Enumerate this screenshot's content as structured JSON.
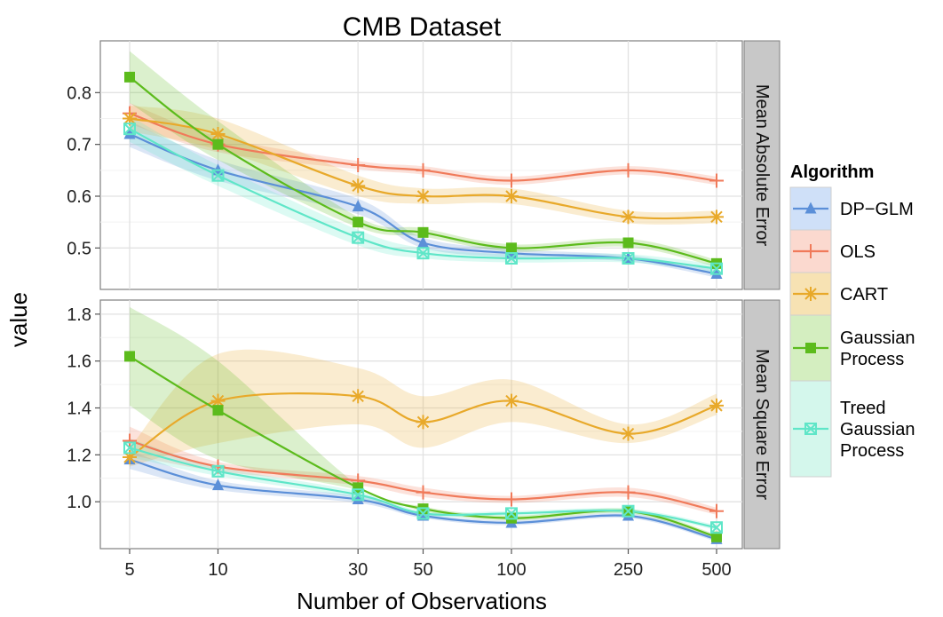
{
  "chart_data": {
    "type": "line",
    "title": "CMB Dataset",
    "xlabel": "Number of Observations",
    "ylabel": "value",
    "x_scale": "log",
    "x": [
      5,
      10,
      30,
      50,
      100,
      250,
      500
    ],
    "x_tick_labels": [
      "5",
      "10",
      "30",
      "50",
      "100",
      "250",
      "500"
    ],
    "grid": true,
    "legend": {
      "title": "Algorithm",
      "placement": "right",
      "entries": [
        {
          "label_lines": [
            "DP−GLM"
          ],
          "color": "#5b8fd8",
          "fill": "#cfe0f8",
          "marker": "triangle"
        },
        {
          "label_lines": [
            "OLS"
          ],
          "color": "#f07a5a",
          "fill": "#fbd9cf",
          "marker": "plus"
        },
        {
          "label_lines": [
            "CART"
          ],
          "color": "#e8a92a",
          "fill": "#f7e2b3",
          "marker": "asterisk"
        },
        {
          "label_lines": [
            "Gaussian",
            "Process"
          ],
          "color": "#5cbb1c",
          "fill": "#d4eec0",
          "marker": "square"
        },
        {
          "label_lines": [
            "Treed",
            "Gaussian",
            "Process"
          ],
          "color": "#5fe6c8",
          "fill": "#d4f7ec",
          "marker": "boxx"
        }
      ]
    },
    "panels": [
      {
        "strip": "Mean Absolute Error",
        "ylim": [
          0.42,
          0.9
        ],
        "yticks": [
          0.5,
          0.6,
          0.7,
          0.8
        ],
        "ytick_labels": [
          "0.5",
          "0.6",
          "0.7",
          "0.8"
        ],
        "series": [
          {
            "name": "DP−GLM",
            "values": [
              0.72,
              0.65,
              0.58,
              0.51,
              0.49,
              0.48,
              0.45
            ],
            "lower": [
              0.695,
              0.63,
              0.565,
              0.5,
              0.482,
              0.474,
              0.443
            ],
            "upper": [
              0.745,
              0.67,
              0.595,
              0.52,
              0.498,
              0.486,
              0.457
            ]
          },
          {
            "name": "OLS",
            "values": [
              0.76,
              0.7,
              0.66,
              0.65,
              0.63,
              0.65,
              0.63
            ],
            "lower": [
              0.74,
              0.685,
              0.652,
              0.642,
              0.622,
              0.642,
              0.622
            ],
            "upper": [
              0.78,
              0.715,
              0.668,
              0.658,
              0.638,
              0.658,
              0.638
            ]
          },
          {
            "name": "CART",
            "values": [
              0.75,
              0.72,
              0.62,
              0.6,
              0.6,
              0.56,
              0.56
            ],
            "lower": [
              0.725,
              0.69,
              0.6,
              0.585,
              0.585,
              0.548,
              0.548
            ],
            "upper": [
              0.775,
              0.75,
              0.64,
              0.615,
              0.615,
              0.572,
              0.572
            ]
          },
          {
            "name": "Gaussian Process",
            "values": [
              0.83,
              0.7,
              0.55,
              0.53,
              0.5,
              0.51,
              0.47
            ],
            "lower": [
              0.78,
              0.67,
              0.54,
              0.522,
              0.493,
              0.502,
              0.463
            ],
            "upper": [
              0.88,
              0.745,
              0.56,
              0.538,
              0.507,
              0.518,
              0.477
            ]
          },
          {
            "name": "Treed Gaussian Process",
            "values": [
              0.73,
              0.64,
              0.52,
              0.49,
              0.48,
              0.48,
              0.46
            ],
            "lower": [
              0.705,
              0.62,
              0.505,
              0.48,
              0.472,
              0.472,
              0.452
            ],
            "upper": [
              0.755,
              0.66,
              0.535,
              0.5,
              0.488,
              0.488,
              0.468
            ]
          }
        ]
      },
      {
        "strip": "Mean Square Error",
        "ylim": [
          0.8,
          1.86
        ],
        "yticks": [
          1.0,
          1.2,
          1.4,
          1.6,
          1.8
        ],
        "ytick_labels": [
          "1.0",
          "1.2",
          "1.4",
          "1.6",
          "1.8"
        ],
        "series": [
          {
            "name": "DP−GLM",
            "values": [
              1.18,
              1.07,
              1.01,
              0.94,
              0.91,
              0.94,
              0.84
            ],
            "lower": [
              1.14,
              1.05,
              0.995,
              0.93,
              0.9,
              0.93,
              0.83
            ],
            "upper": [
              1.22,
              1.09,
              1.025,
              0.95,
              0.92,
              0.95,
              0.85
            ]
          },
          {
            "name": "OLS",
            "values": [
              1.26,
              1.15,
              1.09,
              1.04,
              1.01,
              1.04,
              0.96
            ],
            "lower": [
              1.2,
              1.13,
              1.07,
              1.02,
              0.995,
              1.02,
              0.945
            ],
            "upper": [
              1.32,
              1.17,
              1.11,
              1.06,
              1.025,
              1.06,
              0.975
            ]
          },
          {
            "name": "CART",
            "values": [
              1.19,
              1.43,
              1.45,
              1.34,
              1.43,
              1.29,
              1.41
            ],
            "lower": [
              1.15,
              1.25,
              1.33,
              1.23,
              1.34,
              1.25,
              1.37
            ],
            "upper": [
              1.23,
              1.63,
              1.57,
              1.45,
              1.52,
              1.33,
              1.46
            ]
          },
          {
            "name": "Gaussian Process",
            "values": [
              1.62,
              1.39,
              1.06,
              0.97,
              0.93,
              0.96,
              0.85
            ],
            "lower": [
              1.41,
              1.18,
              1.05,
              0.96,
              0.92,
              0.95,
              0.84
            ],
            "upper": [
              1.83,
              1.6,
              1.07,
              0.98,
              0.94,
              0.97,
              0.86
            ]
          },
          {
            "name": "Treed Gaussian Process",
            "values": [
              1.23,
              1.13,
              1.03,
              0.95,
              0.95,
              0.96,
              0.89
            ],
            "lower": [
              1.19,
              1.11,
              1.015,
              0.94,
              0.94,
              0.95,
              0.88
            ],
            "upper": [
              1.27,
              1.15,
              1.045,
              0.96,
              0.96,
              0.97,
              0.9
            ]
          }
        ]
      }
    ]
  }
}
